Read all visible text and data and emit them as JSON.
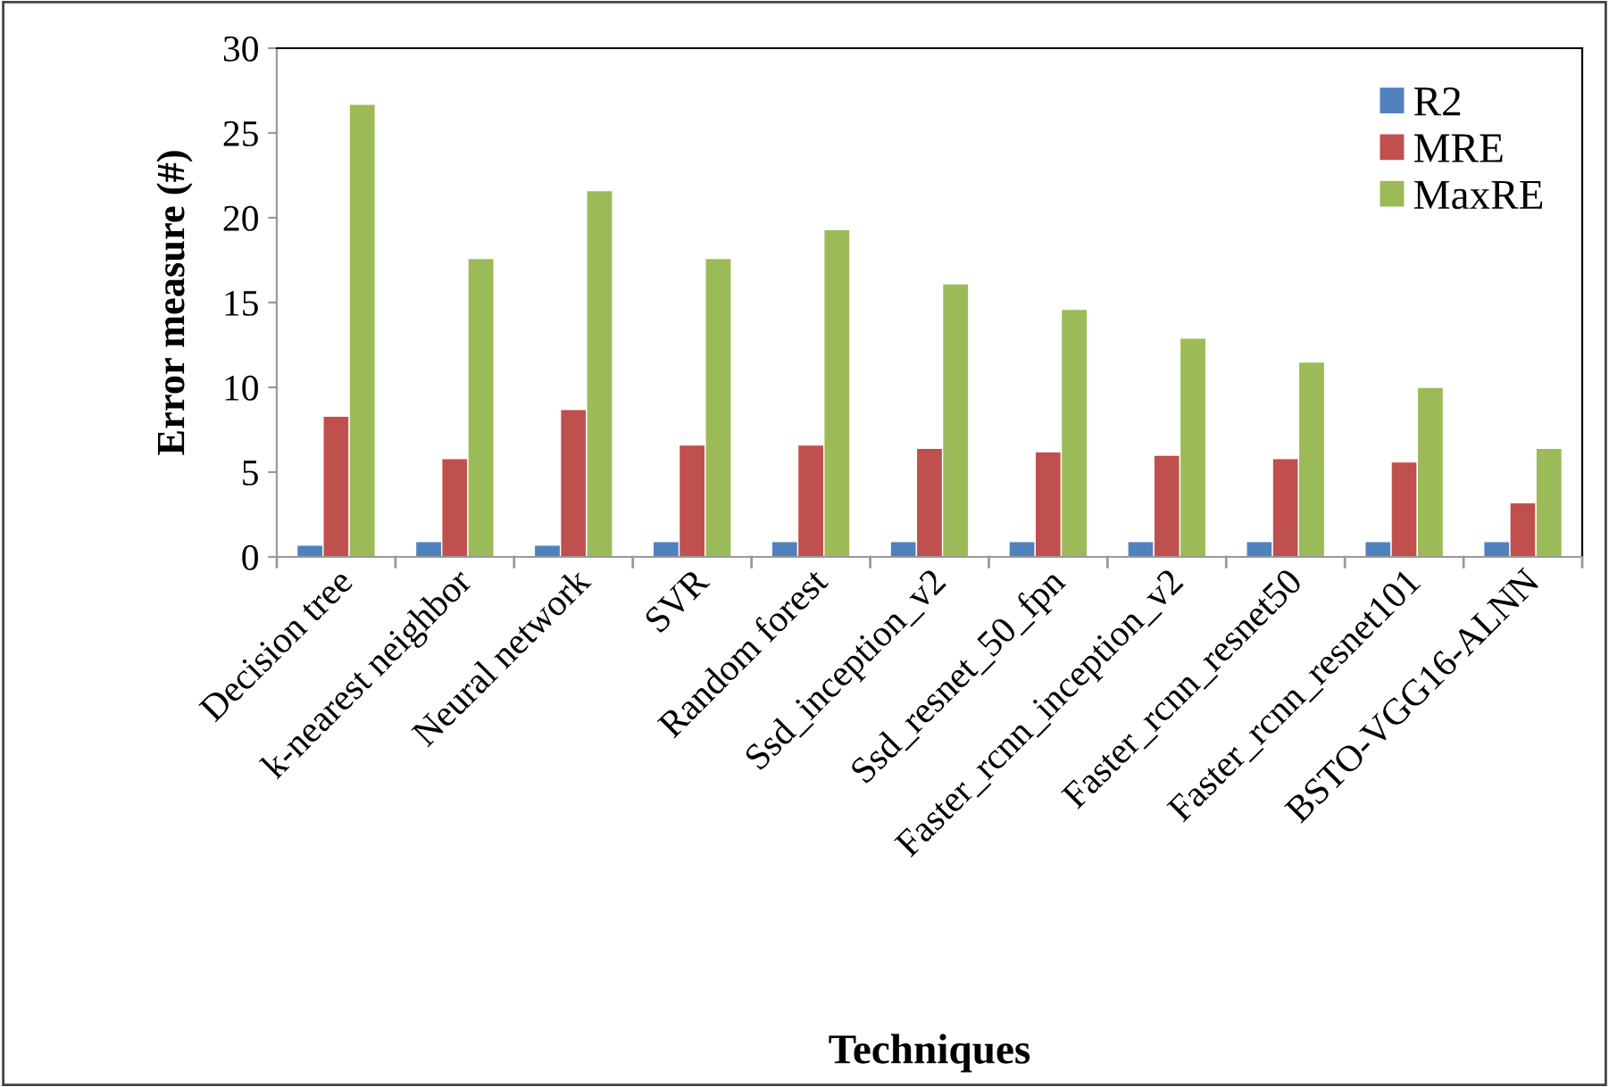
{
  "chart_data": {
    "type": "bar",
    "xlabel": "Techniques",
    "ylabel": "Error measure (#)",
    "categories": [
      "Decision tree",
      "k-nearest neighbor",
      "Neural network",
      "SVR",
      "Random forest",
      "Ssd_inception_v2",
      "Ssd_resnet_50_fpn",
      "Faster_rcnn_inception_v2",
      "Faster_rcnn_resnet50",
      "Faster_rcnn_resnet101",
      "BSTO-VGG16-ALNN"
    ],
    "series": [
      {
        "name": "R2",
        "color": "#4f81bd",
        "values": [
          0.7,
          0.9,
          0.7,
          0.9,
          0.9,
          0.9,
          0.9,
          0.9,
          0.9,
          0.9,
          0.9
        ]
      },
      {
        "name": "MRE",
        "color": "#c0504d",
        "values": [
          8.3,
          5.8,
          8.7,
          6.6,
          6.6,
          6.4,
          6.2,
          6.0,
          5.8,
          5.6,
          3.2
        ]
      },
      {
        "name": "MaxRE",
        "color": "#9bbb59",
        "values": [
          26.7,
          17.6,
          21.6,
          17.6,
          19.3,
          16.1,
          14.6,
          12.9,
          11.5,
          10.0,
          6.4
        ]
      }
    ],
    "ylim": [
      0,
      30
    ],
    "yticks": [
      0,
      5,
      10,
      15,
      20,
      25,
      30
    ],
    "legend": "top right",
    "grid": false
  }
}
